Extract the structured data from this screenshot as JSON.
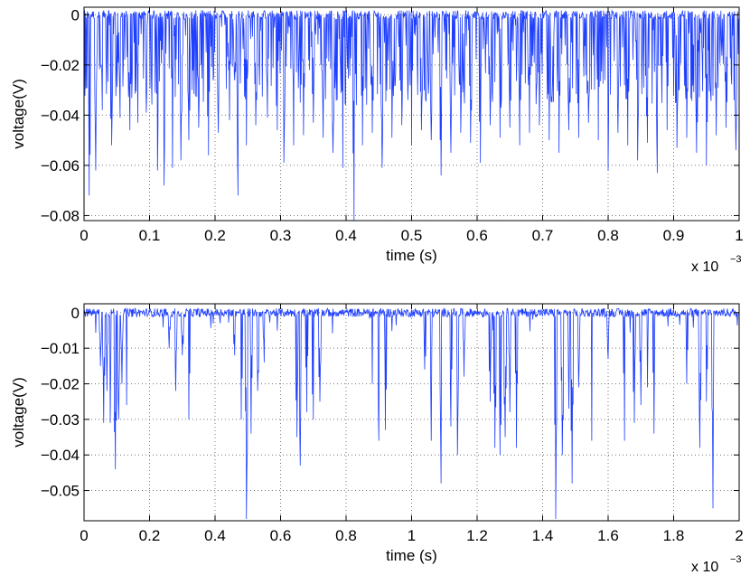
{
  "chart_data": [
    {
      "type": "line",
      "xlabel": "time (s)",
      "ylabel": "voltage(V)",
      "x_exponent_label": "x 10",
      "x_exponent": "−3",
      "xlim": [
        0,
        1
      ],
      "ylim": [
        -0.082,
        0.003
      ],
      "xticks": [
        0,
        0.1,
        0.2,
        0.3,
        0.4,
        0.5,
        0.6,
        0.7,
        0.8,
        0.9,
        1
      ],
      "xtick_labels": [
        "0",
        "0.1",
        "0.2",
        "0.3",
        "0.4",
        "0.5",
        "0.6",
        "0.7",
        "0.8",
        "0.9",
        "1"
      ],
      "yticks": [
        0,
        -0.02,
        -0.04,
        -0.06,
        -0.08
      ],
      "ytick_labels": [
        "0",
        "−0.02",
        "−0.04",
        "−0.06",
        "−0.08"
      ],
      "grid": true,
      "line_color": "#1f3fff",
      "baseline_noise": 0.0018,
      "series": [
        {
          "spikes": [
            [
              0.008,
              -0.072
            ],
            [
              0.018,
              -0.062
            ],
            [
              0.028,
              -0.038
            ],
            [
              0.042,
              -0.052
            ],
            [
              0.055,
              -0.041
            ],
            [
              0.07,
              -0.046
            ],
            [
              0.082,
              -0.043
            ],
            [
              0.095,
              -0.039
            ],
            [
              0.112,
              -0.062
            ],
            [
              0.122,
              -0.068
            ],
            [
              0.135,
              -0.061
            ],
            [
              0.148,
              -0.058
            ],
            [
              0.16,
              -0.05
            ],
            [
              0.175,
              -0.045
            ],
            [
              0.19,
              -0.056
            ],
            [
              0.205,
              -0.047
            ],
            [
              0.222,
              -0.042
            ],
            [
              0.235,
              -0.072
            ],
            [
              0.248,
              -0.052
            ],
            [
              0.262,
              -0.044
            ],
            [
              0.28,
              -0.041
            ],
            [
              0.295,
              -0.046
            ],
            [
              0.305,
              -0.059
            ],
            [
              0.32,
              -0.052
            ],
            [
              0.335,
              -0.048
            ],
            [
              0.35,
              -0.043
            ],
            [
              0.365,
              -0.049
            ],
            [
              0.38,
              -0.055
            ],
            [
              0.395,
              -0.061
            ],
            [
              0.412,
              -0.082
            ],
            [
              0.425,
              -0.052
            ],
            [
              0.44,
              -0.047
            ],
            [
              0.455,
              -0.061
            ],
            [
              0.47,
              -0.049
            ],
            [
              0.485,
              -0.044
            ],
            [
              0.5,
              -0.052
            ],
            [
              0.515,
              -0.046
            ],
            [
              0.53,
              -0.05
            ],
            [
              0.545,
              -0.064
            ],
            [
              0.56,
              -0.055
            ],
            [
              0.575,
              -0.047
            ],
            [
              0.59,
              -0.051
            ],
            [
              0.605,
              -0.059
            ],
            [
              0.62,
              -0.044
            ],
            [
              0.635,
              -0.049
            ],
            [
              0.65,
              -0.045
            ],
            [
              0.665,
              -0.052
            ],
            [
              0.68,
              -0.047
            ],
            [
              0.695,
              -0.044
            ],
            [
              0.71,
              -0.05
            ],
            [
              0.725,
              -0.055
            ],
            [
              0.74,
              -0.046
            ],
            [
              0.755,
              -0.049
            ],
            [
              0.77,
              -0.043
            ],
            [
              0.785,
              -0.05
            ],
            [
              0.8,
              -0.062
            ],
            [
              0.815,
              -0.047
            ],
            [
              0.83,
              -0.052
            ],
            [
              0.845,
              -0.058
            ],
            [
              0.86,
              -0.051
            ],
            [
              0.875,
              -0.063
            ],
            [
              0.89,
              -0.046
            ],
            [
              0.905,
              -0.053
            ],
            [
              0.92,
              -0.049
            ],
            [
              0.935,
              -0.055
            ],
            [
              0.95,
              -0.06
            ],
            [
              0.965,
              -0.048
            ],
            [
              0.98,
              -0.045
            ],
            [
              0.995,
              -0.054
            ]
          ]
        }
      ]
    },
    {
      "type": "line",
      "xlabel": "time (s)",
      "ylabel": "voltage(V)",
      "x_exponent_label": "x 10",
      "x_exponent": "−3",
      "xlim": [
        0,
        2
      ],
      "ylim": [
        -0.0585,
        0.0025
      ],
      "xticks": [
        0,
        0.2,
        0.4,
        0.6,
        0.8,
        1,
        1.2,
        1.4,
        1.6,
        1.8,
        2
      ],
      "xtick_labels": [
        "0",
        "0.2",
        "0.4",
        "0.6",
        "0.8",
        "1",
        "1.2",
        "1.4",
        "1.6",
        "1.8",
        "2"
      ],
      "yticks": [
        0,
        -0.01,
        -0.02,
        -0.03,
        -0.04,
        -0.05
      ],
      "ytick_labels": [
        "0",
        "−0.01",
        "−0.02",
        "−0.03",
        "−0.04",
        "−0.05"
      ],
      "grid": true,
      "line_color": "#1f3fff",
      "baseline_noise": 0.0012,
      "series": [
        {
          "spikes": [
            [
              0.05,
              -0.015
            ],
            [
              0.06,
              -0.031
            ],
            [
              0.07,
              -0.022
            ],
            [
              0.08,
              -0.031
            ],
            [
              0.095,
              -0.044
            ],
            [
              0.105,
              -0.03
            ],
            [
              0.115,
              -0.02
            ],
            [
              0.13,
              -0.026
            ],
            [
              0.26,
              -0.01
            ],
            [
              0.28,
              -0.022
            ],
            [
              0.3,
              -0.012
            ],
            [
              0.32,
              -0.03
            ],
            [
              0.46,
              -0.012
            ],
            [
              0.48,
              -0.03
            ],
            [
              0.495,
              -0.058
            ],
            [
              0.51,
              -0.034
            ],
            [
              0.53,
              -0.022
            ],
            [
              0.55,
              -0.014
            ],
            [
              0.65,
              -0.035
            ],
            [
              0.66,
              -0.043
            ],
            [
              0.68,
              -0.028
            ],
            [
              0.7,
              -0.03
            ],
            [
              0.72,
              -0.025
            ],
            [
              0.88,
              -0.02
            ],
            [
              0.9,
              -0.036
            ],
            [
              0.92,
              -0.033
            ],
            [
              1.04,
              -0.016
            ],
            [
              1.06,
              -0.036
            ],
            [
              1.09,
              -0.048
            ],
            [
              1.12,
              -0.032
            ],
            [
              1.14,
              -0.04
            ],
            [
              1.16,
              -0.018
            ],
            [
              1.24,
              -0.025
            ],
            [
              1.255,
              -0.038
            ],
            [
              1.27,
              -0.04
            ],
            [
              1.285,
              -0.035
            ],
            [
              1.3,
              -0.028
            ],
            [
              1.32,
              -0.038
            ],
            [
              1.44,
              -0.058
            ],
            [
              1.46,
              -0.04
            ],
            [
              1.48,
              -0.027
            ],
            [
              1.49,
              -0.048
            ],
            [
              1.51,
              -0.021
            ],
            [
              1.55,
              -0.036
            ],
            [
              1.6,
              -0.013
            ],
            [
              1.65,
              -0.036
            ],
            [
              1.68,
              -0.031
            ],
            [
              1.7,
              -0.026
            ],
            [
              1.72,
              -0.021
            ],
            [
              1.74,
              -0.034
            ],
            [
              1.84,
              -0.02
            ],
            [
              1.88,
              -0.038
            ],
            [
              1.9,
              -0.025
            ],
            [
              1.92,
              -0.055
            ]
          ]
        }
      ]
    }
  ]
}
